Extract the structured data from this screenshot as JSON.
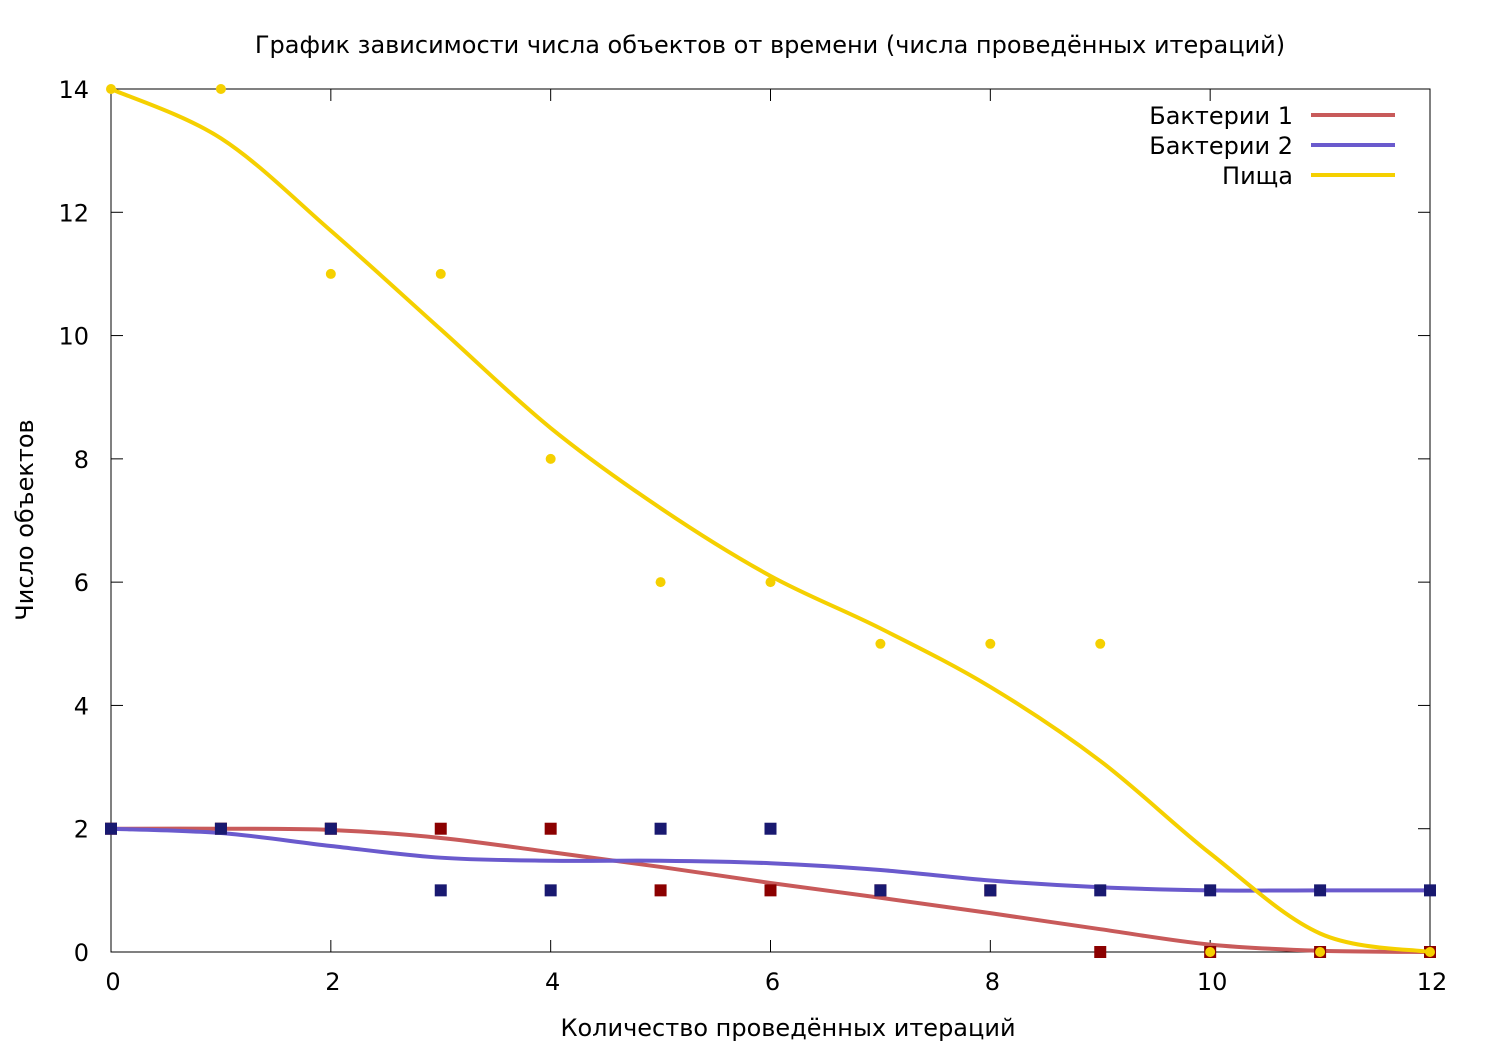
{
  "chart_data": {
    "type": "scatter",
    "title": "График зависимости числа объектов от времени (числа проведённых итераций)",
    "xlabel": "Количество проведённых итераций",
    "ylabel": "Число объектов",
    "xlim": [
      0,
      12
    ],
    "ylim": [
      0,
      14
    ],
    "xticks": [
      0,
      2,
      4,
      6,
      8,
      10,
      12
    ],
    "yticks": [
      0,
      2,
      4,
      6,
      8,
      10,
      12,
      14
    ],
    "grid": false,
    "legend_position": "top-right",
    "series": [
      {
        "name": "Бактерии 1",
        "line_color": "#c85a5a",
        "point_color": "#8b0000",
        "marker": "square",
        "x": [
          0,
          1,
          2,
          3,
          4,
          5,
          6,
          7,
          8,
          9,
          10,
          11,
          12
        ],
        "y": [
          2,
          2,
          2,
          2,
          2,
          1,
          1,
          1,
          1,
          0,
          0,
          0,
          0
        ],
        "smooth_y": [
          2.0,
          2.0,
          1.98,
          1.85,
          1.62,
          1.38,
          1.12,
          0.88,
          0.63,
          0.37,
          0.12,
          0.02,
          0.0
        ]
      },
      {
        "name": "Бактерии 2",
        "line_color": "#6a5acd",
        "point_color": "#191970",
        "marker": "square",
        "x": [
          0,
          1,
          2,
          3,
          4,
          5,
          6,
          7,
          8,
          9,
          10,
          11,
          12
        ],
        "y": [
          2,
          2,
          2,
          1,
          1,
          2,
          2,
          1,
          1,
          1,
          1,
          1,
          1
        ],
        "smooth_y": [
          2.0,
          1.93,
          1.72,
          1.53,
          1.48,
          1.48,
          1.44,
          1.33,
          1.16,
          1.05,
          1.0,
          1.0,
          1.0
        ]
      },
      {
        "name": "Пища",
        "line_color": "#f5d000",
        "point_color": "#f5d000",
        "marker": "circle",
        "x": [
          0,
          1,
          2,
          3,
          4,
          5,
          6,
          7,
          8,
          9,
          10,
          11,
          12
        ],
        "y": [
          14,
          14,
          11,
          11,
          8,
          6,
          6,
          5,
          5,
          5,
          0,
          0,
          0
        ],
        "smooth_y": [
          14.0,
          13.2,
          11.7,
          10.1,
          8.5,
          7.2,
          6.1,
          5.25,
          4.3,
          3.1,
          1.6,
          0.3,
          0.0
        ]
      }
    ]
  }
}
